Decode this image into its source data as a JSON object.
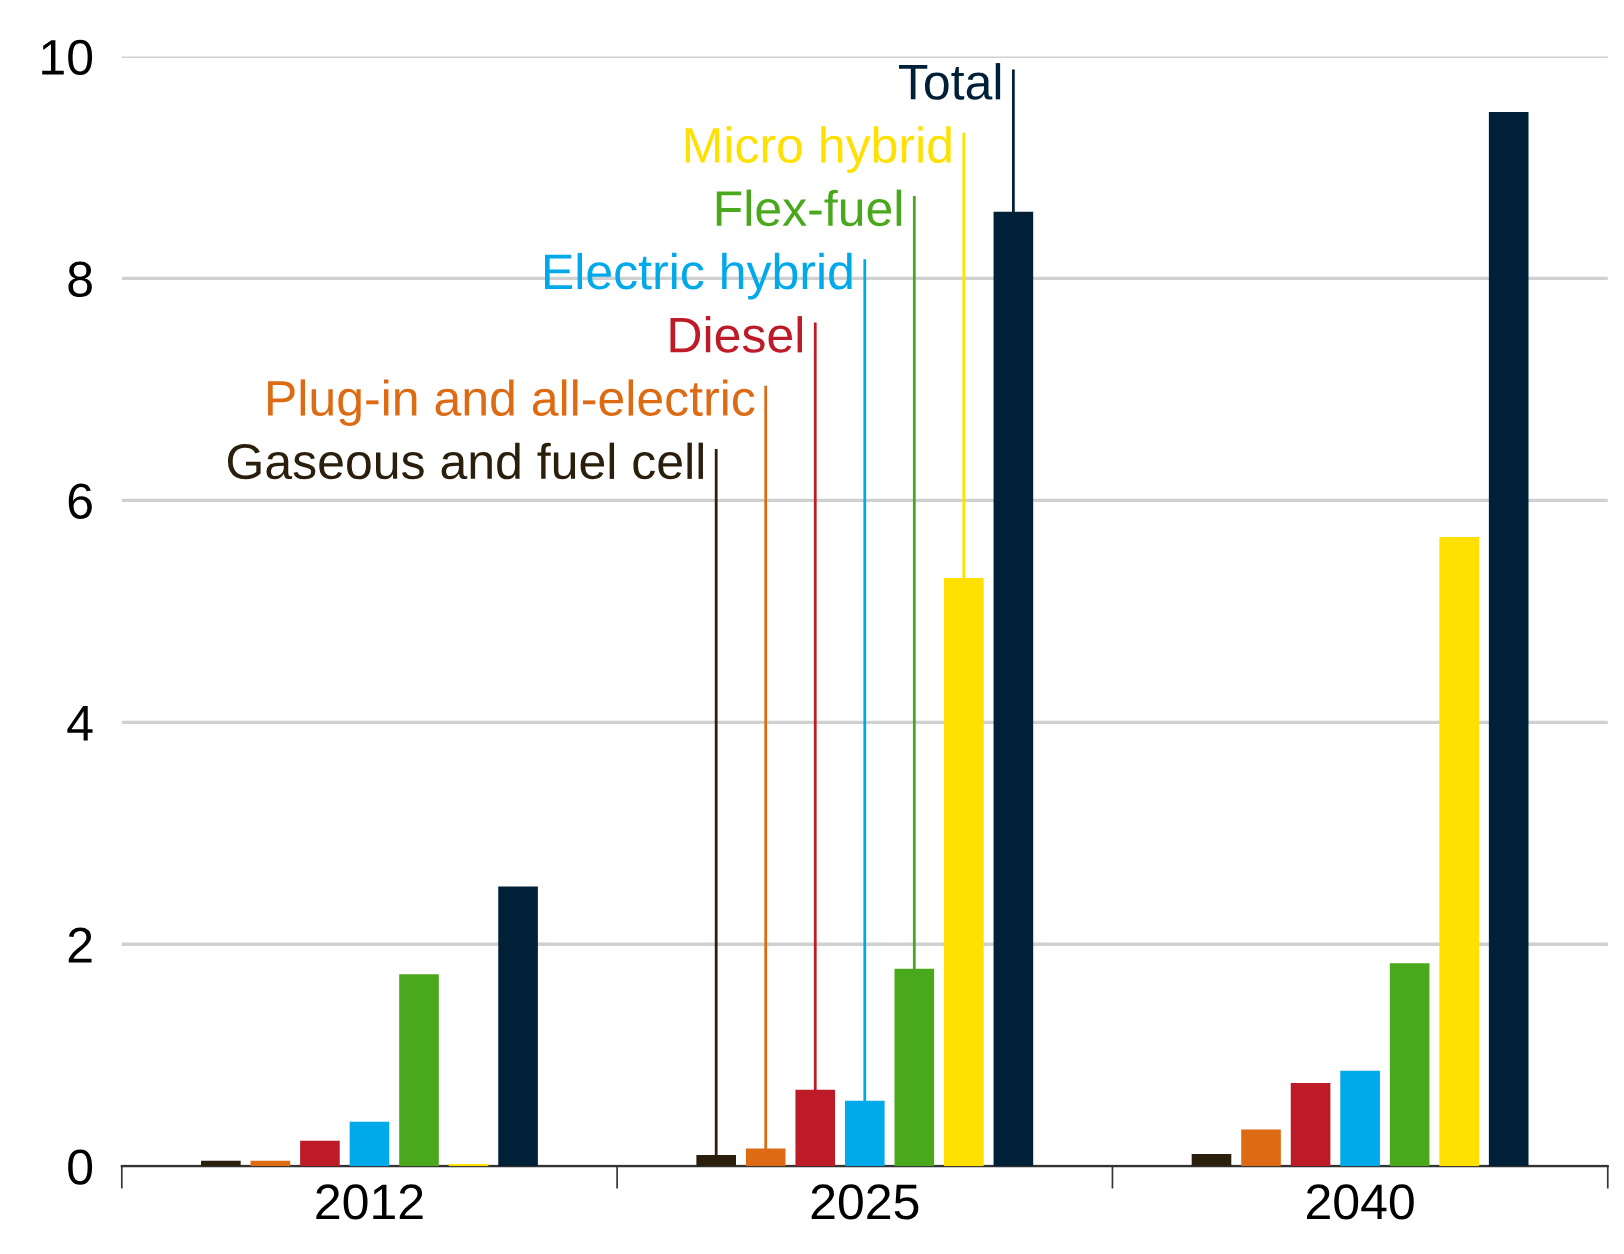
{
  "chart_data": {
    "type": "bar",
    "categories": [
      "2012",
      "2025",
      "2040"
    ],
    "series": [
      {
        "name": "Gaseous and fuel cell",
        "color": "#2a1f0c",
        "values": [
          0.05,
          0.1,
          0.11
        ]
      },
      {
        "name": "Plug-in and all-electric",
        "color": "#dd6b14",
        "values": [
          0.05,
          0.16,
          0.33
        ]
      },
      {
        "name": "Diesel",
        "color": "#bc1b27",
        "values": [
          0.23,
          0.69,
          0.75
        ]
      },
      {
        "name": "Electric hybrid",
        "color": "#00a9ea",
        "values": [
          0.4,
          0.59,
          0.86
        ]
      },
      {
        "name": "Flex-fuel",
        "color": "#49a81b",
        "values": [
          1.73,
          1.78,
          1.83
        ]
      },
      {
        "name": "Micro hybrid",
        "color": "#ffe000",
        "values": [
          0.02,
          5.3,
          5.67
        ]
      },
      {
        "name": "Total",
        "color": "#002038",
        "values": [
          2.52,
          8.6,
          9.5
        ]
      }
    ],
    "ylim": [
      0,
      10
    ],
    "yticks": [
      0,
      2,
      4,
      6,
      8,
      10
    ],
    "grid": "y",
    "legend": false
  }
}
